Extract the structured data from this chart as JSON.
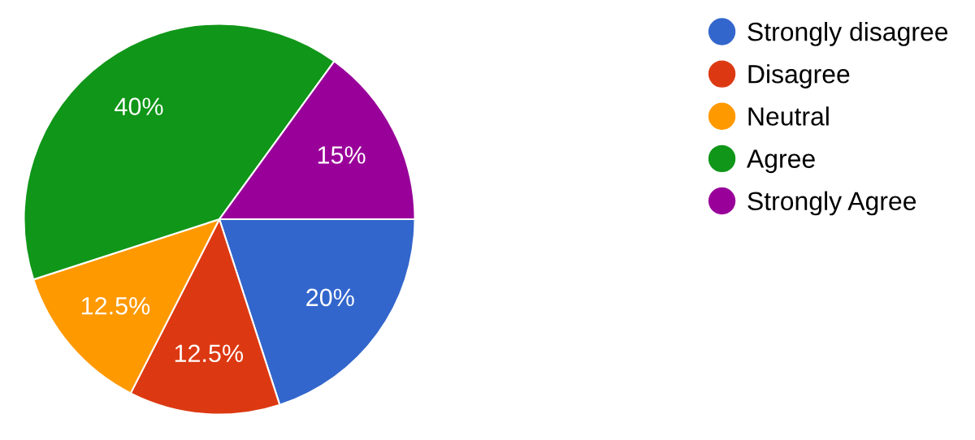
{
  "chart_data": {
    "type": "pie",
    "categories": [
      "Strongly disagree",
      "Disagree",
      "Neutral",
      "Agree",
      "Strongly Agree"
    ],
    "values": [
      20,
      12.5,
      12.5,
      40,
      15
    ],
    "value_labels": [
      "20%",
      "12.5%",
      "12.5%",
      "40%",
      "15%"
    ],
    "colors": [
      "#3366cc",
      "#dc3912",
      "#ff9900",
      "#109618",
      "#990099"
    ],
    "legend": "right"
  }
}
